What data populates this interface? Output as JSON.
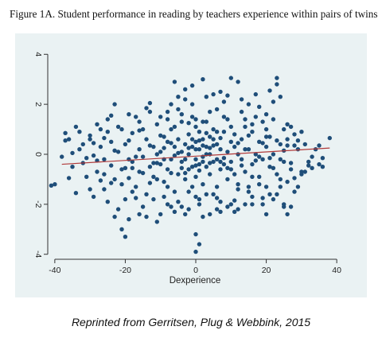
{
  "figure": {
    "title": "Figure 1A. Student performance in reading by teachers experience within pairs of twins",
    "caption": "Reprinted from Gerritsen, Plug & Webbink, 2015"
  },
  "colors": {
    "background": "#eaf2f3",
    "point": "#1f4e79",
    "fit": "#b03a3a",
    "axis": "#333333"
  },
  "chart_data": {
    "type": "scatter",
    "title": "Figure 1A. Student performance in reading by teachers experience within pairs of twins",
    "xlabel": "Dexperience",
    "ylabel": "",
    "xlim": [
      -42,
      42
    ],
    "ylim": [
      -4.2,
      4.2
    ],
    "xticks": [
      -40,
      -20,
      0,
      20,
      40
    ],
    "yticks": [
      -4,
      -2,
      0,
      2,
      4
    ],
    "grid": false,
    "legend": "none",
    "fit_line": {
      "x": [
        -38,
        38
      ],
      "y": [
        -0.4,
        0.25
      ]
    },
    "points": [
      [
        -41,
        -1.25
      ],
      [
        -37,
        0.85
      ],
      [
        -36,
        0.6
      ],
      [
        -35,
        -0.5
      ],
      [
        -34,
        -1.55
      ],
      [
        -33,
        0.2
      ],
      [
        -32,
        -0.35
      ],
      [
        -31,
        -0.9
      ],
      [
        -30,
        0.6
      ],
      [
        -29,
        -0.05
      ],
      [
        -28,
        1.2
      ],
      [
        -28,
        -0.7
      ],
      [
        -27,
        0.3
      ],
      [
        -26,
        -0.2
      ],
      [
        -26,
        -1.4
      ],
      [
        -25,
        0.9
      ],
      [
        -24,
        -0.45
      ],
      [
        -24,
        0.5
      ],
      [
        -23,
        2.0
      ],
      [
        -23,
        -1.0
      ],
      [
        -22,
        0.1
      ],
      [
        -21,
        -0.6
      ],
      [
        -21,
        1.0
      ],
      [
        -20,
        -1.8
      ],
      [
        -20,
        0.4
      ],
      [
        -19,
        -0.2
      ],
      [
        -19,
        -0.95
      ],
      [
        -18,
        0.85
      ],
      [
        -18,
        -0.3
      ],
      [
        -17,
        1.5
      ],
      [
        -17,
        -1.3
      ],
      [
        -16,
        0.2
      ],
      [
        -16,
        -0.7
      ],
      [
        -15,
        1.0
      ],
      [
        -15,
        -0.1
      ],
      [
        -14,
        0.6
      ],
      [
        -14,
        -1.6
      ],
      [
        -13,
        1.7
      ],
      [
        -13,
        -0.5
      ],
      [
        -12,
        0.3
      ],
      [
        -12,
        -0.9
      ],
      [
        -11,
        1.2
      ],
      [
        -11,
        0.0
      ],
      [
        -10,
        -0.4
      ],
      [
        -10,
        0.75
      ],
      [
        -9,
        -1.1
      ],
      [
        -9,
        0.25
      ],
      [
        -8,
        1.4
      ],
      [
        -8,
        -0.6
      ],
      [
        -8,
        0.5
      ],
      [
        -7,
        -0.2
      ],
      [
        -7,
        1.0
      ],
      [
        -6,
        -1.5
      ],
      [
        -6,
        0.3
      ],
      [
        -6,
        2.9
      ],
      [
        -5,
        -0.8
      ],
      [
        -5,
        0.6
      ],
      [
        -5,
        1.8
      ],
      [
        -4,
        0.1
      ],
      [
        -4,
        -0.3
      ],
      [
        -4,
        1.3
      ],
      [
        -3,
        -1.0
      ],
      [
        -3,
        0.4
      ],
      [
        -3,
        2.2
      ],
      [
        -2,
        0.0
      ],
      [
        -2,
        -0.6
      ],
      [
        -2,
        0.8
      ],
      [
        -1,
        -1.3
      ],
      [
        -1,
        0.3
      ],
      [
        -1,
        1.5
      ],
      [
        0,
        -0.2
      ],
      [
        0,
        0.5
      ],
      [
        0,
        -0.9
      ],
      [
        0,
        1.1
      ],
      [
        0,
        -3.2
      ],
      [
        0,
        -3.9
      ],
      [
        1,
        0.2
      ],
      [
        1,
        -0.4
      ],
      [
        1,
        0.9
      ],
      [
        1,
        -3.6
      ],
      [
        2,
        -0.1
      ],
      [
        2,
        0.6
      ],
      [
        2,
        -1.2
      ],
      [
        2,
        3.0
      ],
      [
        3,
        0.3
      ],
      [
        3,
        -0.5
      ],
      [
        3,
        1.3
      ],
      [
        4,
        0.0
      ],
      [
        4,
        -0.8
      ],
      [
        4,
        0.7
      ],
      [
        5,
        -0.3
      ],
      [
        5,
        1.0
      ],
      [
        5,
        -1.6
      ],
      [
        6,
        0.4
      ],
      [
        6,
        -0.2
      ],
      [
        6,
        1.8
      ],
      [
        7,
        -0.6
      ],
      [
        7,
        0.2
      ],
      [
        7,
        -1.9
      ],
      [
        8,
        0.9
      ],
      [
        8,
        -0.4
      ],
      [
        9,
        0.1
      ],
      [
        9,
        1.4
      ],
      [
        9,
        -1.0
      ],
      [
        10,
        0.5
      ],
      [
        10,
        -0.3
      ],
      [
        10,
        3.05
      ],
      [
        11,
        -0.8
      ],
      [
        11,
        0.8
      ],
      [
        12,
        0.0
      ],
      [
        12,
        2.9
      ],
      [
        12,
        -1.4
      ],
      [
        13,
        0.6
      ],
      [
        13,
        -0.2
      ],
      [
        14,
        1.1
      ],
      [
        14,
        -0.7
      ],
      [
        15,
        0.2
      ],
      [
        15,
        -1.5
      ],
      [
        16,
        0.9
      ],
      [
        16,
        -0.4
      ],
      [
        17,
        1.5
      ],
      [
        17,
        0.0
      ],
      [
        18,
        -0.9
      ],
      [
        18,
        0.5
      ],
      [
        19,
        -0.2
      ],
      [
        19,
        1.3
      ],
      [
        20,
        0.3
      ],
      [
        20,
        -1.3
      ],
      [
        21,
        0.7
      ],
      [
        21,
        -0.5
      ],
      [
        22,
        2.1
      ],
      [
        22,
        0.0
      ],
      [
        23,
        -0.8
      ],
      [
        23,
        2.8
      ],
      [
        23,
        3.05
      ],
      [
        24,
        0.4
      ],
      [
        24,
        -1.0
      ],
      [
        25,
        1.0
      ],
      [
        25,
        -0.3
      ],
      [
        26,
        -2.4
      ],
      [
        26,
        0.6
      ],
      [
        27,
        -0.6
      ],
      [
        27,
        -2.1
      ],
      [
        28,
        0.8
      ],
      [
        29,
        0.2
      ],
      [
        30,
        -0.7
      ],
      [
        31,
        0.4
      ],
      [
        32,
        -0.3
      ],
      [
        35,
        -0.4
      ],
      [
        36,
        -0.5
      ],
      [
        38,
        0.65
      ],
      [
        -30,
        -1.4
      ],
      [
        -27,
        1.0
      ],
      [
        -25,
        -1.9
      ],
      [
        -22,
        -2.2
      ],
      [
        -21,
        -3.0
      ],
      [
        -20,
        -3.3
      ],
      [
        -18,
        -1.5
      ],
      [
        -15,
        -2.1
      ],
      [
        -14,
        -2.5
      ],
      [
        -12,
        -1.8
      ],
      [
        -10,
        -2.4
      ],
      [
        -8,
        -2.0
      ],
      [
        -6,
        -2.3
      ],
      [
        -5,
        2.3
      ],
      [
        -4,
        -2.1
      ],
      [
        -3,
        2.6
      ],
      [
        -2,
        -2.2
      ],
      [
        -1,
        2.0
      ],
      [
        1,
        -1.8
      ],
      [
        2,
        -2.5
      ],
      [
        3,
        -1.6
      ],
      [
        5,
        2.4
      ],
      [
        6,
        -2.2
      ],
      [
        8,
        2.1
      ],
      [
        10,
        -2.0
      ],
      [
        11,
        -2.3
      ],
      [
        13,
        1.7
      ],
      [
        14,
        -2.0
      ],
      [
        15,
        2.0
      ],
      [
        16,
        -1.7
      ],
      [
        18,
        1.9
      ],
      [
        19,
        -2.0
      ],
      [
        20,
        1.6
      ],
      [
        22,
        -1.8
      ],
      [
        24,
        2.3
      ],
      [
        25,
        -2.0
      ],
      [
        27,
        1.1
      ],
      [
        28,
        -1.5
      ],
      [
        30,
        -0.8
      ],
      [
        33,
        -0.1
      ],
      [
        -33,
        0.9
      ],
      [
        -29,
        0.45
      ],
      [
        -26,
        0.65
      ],
      [
        -23,
        0.15
      ],
      [
        -19,
        0.55
      ],
      [
        -16,
        0.95
      ],
      [
        -13,
        0.35
      ],
      [
        -11,
        -0.35
      ],
      [
        -9,
        0.7
      ],
      [
        -7,
        -0.75
      ],
      [
        -5,
        0.05
      ],
      [
        -3,
        -0.2
      ],
      [
        -1,
        0.6
      ],
      [
        1,
        -0.65
      ],
      [
        3,
        0.85
      ],
      [
        5,
        0.35
      ],
      [
        7,
        0.65
      ],
      [
        9,
        -0.55
      ],
      [
        11,
        0.3
      ],
      [
        13,
        -0.45
      ],
      [
        15,
        0.75
      ],
      [
        17,
        -0.25
      ],
      [
        19,
        0.45
      ],
      [
        21,
        -0.15
      ],
      [
        23,
        0.55
      ],
      [
        25,
        0.15
      ],
      [
        27,
        -0.35
      ],
      [
        29,
        0.55
      ],
      [
        -28,
        -0.25
      ],
      [
        -24,
        -1.15
      ],
      [
        -20,
        -0.55
      ],
      [
        -17,
        -0.1
      ],
      [
        -13,
        -1.15
      ],
      [
        -10,
        0.1
      ],
      [
        -7,
        0.45
      ],
      [
        -4,
        -0.55
      ],
      [
        -2,
        1.25
      ],
      [
        0,
        0.2
      ],
      [
        2,
        0.35
      ],
      [
        4,
        -0.35
      ],
      [
        6,
        0.9
      ],
      [
        8,
        -0.15
      ],
      [
        10,
        -0.6
      ],
      [
        12,
        0.45
      ],
      [
        14,
        0.2
      ],
      [
        16,
        -0.9
      ],
      [
        18,
        -0.1
      ],
      [
        20,
        0.7
      ],
      [
        22,
        -0.55
      ],
      [
        24,
        -0.2
      ],
      [
        26,
        0.35
      ],
      [
        -35,
        0.05
      ],
      [
        -31,
        -0.15
      ],
      [
        -9,
        -0.2
      ],
      [
        -6,
        -0.05
      ],
      [
        -1,
        -0.5
      ],
      [
        1,
        0.55
      ],
      [
        4,
        0.25
      ],
      [
        7,
        -0.3
      ],
      [
        -18,
        -0.55
      ],
      [
        -15,
        -0.75
      ],
      [
        -12,
        -0.35
      ],
      [
        -3,
        -0.75
      ],
      [
        0,
        -0.45
      ],
      [
        2,
        -0.3
      ],
      [
        5,
        0.6
      ],
      [
        3,
        0.0
      ],
      [
        -2,
        0.25
      ],
      [
        -8,
        -1.3
      ],
      [
        -11,
        -1.0
      ],
      [
        -16,
        1.3
      ],
      [
        -22,
        1.1
      ],
      [
        -26,
        -0.8
      ],
      [
        -32,
        0.4
      ],
      [
        31,
        -0.7
      ],
      [
        34,
        0.2
      ],
      [
        -37,
        0.55
      ],
      [
        -30,
        0.75
      ],
      [
        -27,
        -1.05
      ],
      [
        -19,
        1.6
      ],
      [
        -17,
        -1.75
      ],
      [
        -10,
        1.5
      ],
      [
        -8,
        1.7
      ],
      [
        -6,
        1.1
      ],
      [
        -4,
        1.6
      ],
      [
        -2,
        -1.5
      ],
      [
        0,
        1.4
      ],
      [
        2,
        1.3
      ],
      [
        4,
        1.7
      ],
      [
        6,
        -1.3
      ],
      [
        8,
        1.5
      ],
      [
        10,
        1.1
      ],
      [
        12,
        -1.2
      ],
      [
        14,
        1.4
      ],
      [
        16,
        1.2
      ],
      [
        18,
        -1.2
      ],
      [
        20,
        1.0
      ],
      [
        22,
        1.4
      ],
      [
        24,
        -1.3
      ],
      [
        26,
        1.2
      ],
      [
        28,
        0.35
      ],
      [
        30,
        0.9
      ],
      [
        32,
        -0.45
      ],
      [
        -40,
        -1.2
      ],
      [
        -36,
        -0.95
      ],
      [
        -34,
        1.1
      ],
      [
        -25,
        1.4
      ],
      [
        -14,
        1.85
      ],
      [
        -7,
        2.0
      ],
      [
        -1,
        2.75
      ],
      [
        3,
        2.3
      ],
      [
        7,
        2.5
      ],
      [
        9,
        2.35
      ],
      [
        13,
        2.2
      ],
      [
        17,
        2.4
      ],
      [
        21,
        2.55
      ],
      [
        -23,
        -2.5
      ],
      [
        -19,
        -2.6
      ],
      [
        -16,
        -2.4
      ],
      [
        -11,
        -2.7
      ],
      [
        -7,
        -2.1
      ],
      [
        -3,
        -2.4
      ],
      [
        1,
        -2.0
      ],
      [
        4,
        -2.4
      ],
      [
        7,
        -2.3
      ],
      [
        9,
        -2.1
      ],
      [
        12,
        -2.2
      ],
      [
        16,
        -2.0
      ],
      [
        20,
        -2.4
      ],
      [
        23,
        -1.6
      ],
      [
        25,
        -2.1
      ],
      [
        29,
        -1.3
      ],
      [
        33,
        -0.55
      ],
      [
        35,
        0.35
      ],
      [
        36,
        -0.15
      ],
      [
        -38,
        -0.1
      ],
      [
        -29,
        -1.7
      ],
      [
        -24,
        1.55
      ],
      [
        -21,
        -1.2
      ],
      [
        -13,
        2.05
      ],
      [
        -9,
        -1.7
      ],
      [
        -5,
        -1.9
      ],
      [
        0,
        -1.7
      ],
      [
        6,
        -1.75
      ],
      [
        11,
        -1.85
      ],
      [
        15,
        -1.3
      ],
      [
        19,
        -1.75
      ],
      [
        21,
        -1.6
      ],
      [
        26,
        -1.1
      ],
      [
        28,
        -0.95
      ]
    ]
  }
}
